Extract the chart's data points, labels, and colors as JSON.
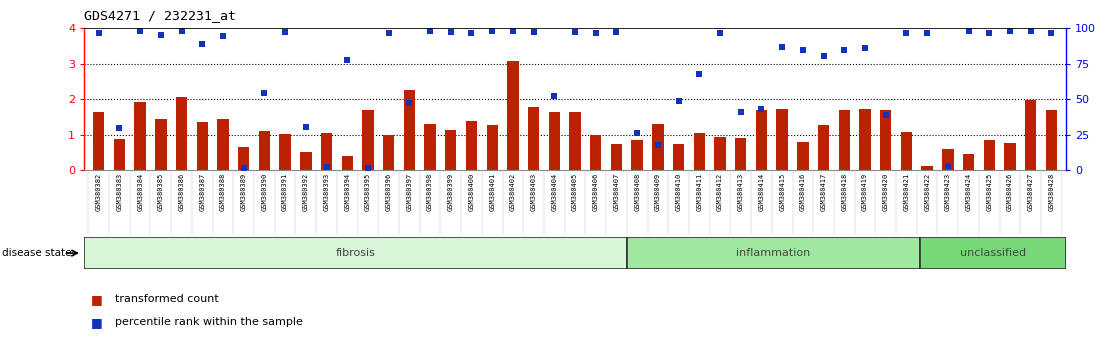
{
  "title": "GDS4271 / 232231_at",
  "samples": [
    "GSM380382",
    "GSM380383",
    "GSM380384",
    "GSM380385",
    "GSM380386",
    "GSM380387",
    "GSM380388",
    "GSM380389",
    "GSM380390",
    "GSM380391",
    "GSM380392",
    "GSM380393",
    "GSM380394",
    "GSM380395",
    "GSM380396",
    "GSM380397",
    "GSM380398",
    "GSM380399",
    "GSM380400",
    "GSM380401",
    "GSM380402",
    "GSM380403",
    "GSM380404",
    "GSM380405",
    "GSM380406",
    "GSM380407",
    "GSM380408",
    "GSM380409",
    "GSM380410",
    "GSM380411",
    "GSM380412",
    "GSM380413",
    "GSM380414",
    "GSM380415",
    "GSM380416",
    "GSM380417",
    "GSM380418",
    "GSM380419",
    "GSM380420",
    "GSM380421",
    "GSM380422",
    "GSM380423",
    "GSM380424",
    "GSM380425",
    "GSM380426",
    "GSM380427",
    "GSM380428"
  ],
  "bar_values": [
    1.65,
    0.88,
    1.93,
    1.45,
    2.05,
    1.35,
    1.45,
    0.65,
    1.1,
    1.02,
    0.52,
    1.05,
    0.38,
    1.7,
    1.0,
    2.25,
    1.3,
    1.12,
    1.38,
    1.28,
    3.08,
    1.78,
    1.65,
    1.65,
    0.98,
    0.72,
    0.85,
    1.3,
    0.72,
    1.05,
    0.92,
    0.9,
    1.7,
    1.72,
    0.8,
    1.28,
    1.7,
    1.72,
    1.7,
    1.08,
    0.1,
    0.6,
    0.45,
    0.85,
    0.75,
    1.97,
    1.68
  ],
  "percentile_values": [
    3.88,
    1.18,
    3.92,
    3.82,
    3.92,
    3.55,
    3.78,
    0.05,
    2.18,
    3.9,
    1.22,
    0.08,
    3.1,
    0.05,
    3.88,
    1.88,
    3.92,
    3.9,
    3.88,
    3.92,
    3.92,
    3.9,
    2.08,
    3.9,
    3.88,
    3.9,
    1.05,
    0.7,
    1.95,
    2.72,
    3.88,
    1.65,
    1.72,
    3.48,
    3.38,
    3.22,
    3.38,
    3.45,
    1.55,
    3.88,
    3.88,
    0.12,
    3.92,
    3.88,
    3.92,
    3.92,
    3.88
  ],
  "groups": [
    {
      "label": "fibrosis",
      "start": 0,
      "end": 26,
      "color": "#d8f5d8"
    },
    {
      "label": "inflammation",
      "start": 26,
      "end": 40,
      "color": "#a0e8a0"
    },
    {
      "label": "unclassified",
      "start": 40,
      "end": 47,
      "color": "#78d878"
    }
  ],
  "ylim_left": [
    0,
    4
  ],
  "ylim_right": [
    0,
    100
  ],
  "yticks_left": [
    0,
    1,
    2,
    3,
    4
  ],
  "yticks_right": [
    0,
    25,
    50,
    75,
    100
  ],
  "bar_color": "#bb2200",
  "scatter_color": "#1133bb",
  "plot_bg_color": "#ffffff",
  "tick_area_bg": "#e0e0e0",
  "dotted_lines": [
    1,
    2,
    3
  ],
  "legend_items": [
    "transformed count",
    "percentile rank within the sample"
  ],
  "n_fibrosis": 26,
  "n_inflammation": 14,
  "n_unclassified": 7
}
